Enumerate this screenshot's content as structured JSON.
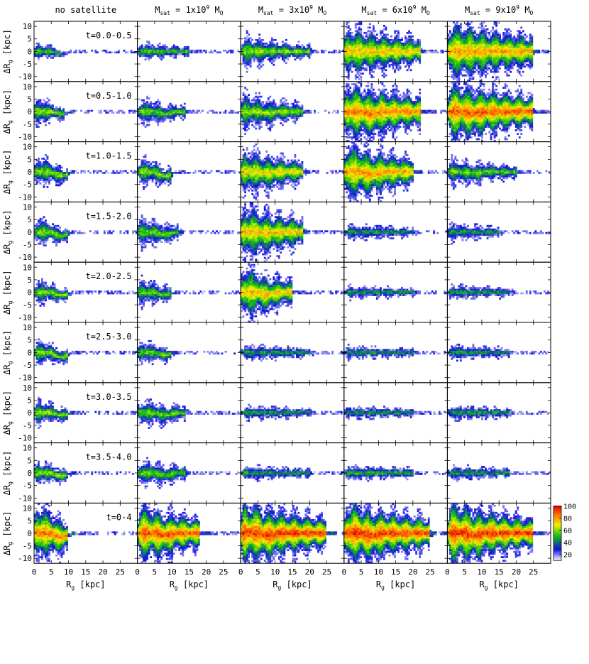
{
  "chart_data": {
    "type": "heatmap",
    "layout": {
      "rows": 9,
      "cols": 5
    },
    "columns": [
      {
        "title": "no satellite",
        "base": "",
        "sub": "",
        "sup": "",
        "tail": ""
      },
      {
        "title": "",
        "base": "M",
        "sub": "sat",
        "sup": "9",
        "tail": " = 1x10",
        "unit_base": " M",
        "unit_sub": "O"
      },
      {
        "title": "",
        "base": "M",
        "sub": "sat",
        "sup": "9",
        "tail": " = 3x10",
        "unit_base": " M",
        "unit_sub": "O"
      },
      {
        "title": "",
        "base": "M",
        "sub": "sat",
        "sup": "9",
        "tail": " = 6x10",
        "unit_base": " M",
        "unit_sub": "O"
      },
      {
        "title": "",
        "base": "M",
        "sub": "sat",
        "sup": "9",
        "tail": " = 9x10",
        "unit_base": " M",
        "unit_sub": "O"
      }
    ],
    "row_labels": [
      "t=0.0-0.5",
      "t=0.5-1.0",
      "t=1.0-1.5",
      "t=1.5-2.0",
      "t=2.0-2.5",
      "t=2.5-3.0",
      "t=3.0-3.5",
      "t=3.5-4.0",
      "t=0-4"
    ],
    "xlabel": {
      "base": "R",
      "sub": "g",
      "rest": " [kpc]"
    },
    "ylabel": {
      "pre": "ΔR",
      "sub": "g",
      "rest": " [kpc]"
    },
    "x_ticks": [
      0,
      5,
      10,
      15,
      20,
      25
    ],
    "y_ticks": [
      10,
      5,
      0,
      -5,
      -10
    ],
    "xlim": [
      0,
      30
    ],
    "ylim": [
      -12,
      12
    ],
    "colorbar": {
      "ticks": [
        100,
        80,
        60,
        40,
        20
      ],
      "range": [
        10,
        100
      ],
      "colors": [
        "#ffffff",
        "#1010e0",
        "#10c010",
        "#f0f000",
        "#ff8000",
        "#e00000"
      ]
    },
    "panels": [
      [
        {
          "extent": 8,
          "amp": 2.5,
          "decay": 0.28,
          "density": 0.55,
          "dip": 0.3
        },
        {
          "extent": 15,
          "amp": 2.5,
          "decay": 0.12,
          "density": 0.55,
          "dip": 0
        },
        {
          "extent": 20,
          "amp": 5,
          "decay": 0.1,
          "density": 0.6,
          "dip": 0
        },
        {
          "extent": 22,
          "amp": 9,
          "decay": 0.06,
          "density": 0.75,
          "dip": 0
        },
        {
          "extent": 25,
          "amp": 11,
          "decay": 0.05,
          "density": 0.8,
          "dip": 0
        }
      ],
      [
        {
          "extent": 9,
          "amp": 5,
          "decay": 0.3,
          "density": 0.6,
          "dip": 0.3
        },
        {
          "extent": 14,
          "amp": 4,
          "decay": 0.12,
          "density": 0.55,
          "dip": 0.3
        },
        {
          "extent": 18,
          "amp": 6,
          "decay": 0.1,
          "density": 0.6,
          "dip": 0.2
        },
        {
          "extent": 22,
          "amp": 11,
          "decay": 0.06,
          "density": 0.85,
          "dip": 0.3
        },
        {
          "extent": 25,
          "amp": 11,
          "decay": 0.05,
          "density": 0.9,
          "dip": 0.2
        }
      ],
      [
        {
          "extent": 10,
          "amp": 5,
          "decay": 0.2,
          "density": 0.6,
          "dip": 0.5
        },
        {
          "extent": 10,
          "amp": 4.5,
          "decay": 0.15,
          "density": 0.6,
          "dip": 0.6
        },
        {
          "extent": 18,
          "amp": 8,
          "decay": 0.08,
          "density": 0.7,
          "dip": 0.2
        },
        {
          "extent": 20,
          "amp": 11,
          "decay": 0.08,
          "density": 0.8,
          "dip": 0.3
        },
        {
          "extent": 20,
          "amp": 4,
          "decay": 0.07,
          "density": 0.55,
          "dip": 0.2
        }
      ],
      [
        {
          "extent": 10,
          "amp": 4.5,
          "decay": 0.2,
          "density": 0.6,
          "dip": 0.5
        },
        {
          "extent": 12,
          "amp": 4.5,
          "decay": 0.12,
          "density": 0.55,
          "dip": 0.3
        },
        {
          "extent": 18,
          "amp": 10,
          "decay": 0.08,
          "density": 0.75,
          "dip": 0.2
        },
        {
          "extent": 20,
          "amp": 2,
          "decay": 0.06,
          "density": 0.45,
          "dip": 0
        },
        {
          "extent": 15,
          "amp": 2.5,
          "decay": 0.1,
          "density": 0.45,
          "dip": 0
        }
      ],
      [
        {
          "extent": 10,
          "amp": 4,
          "decay": 0.2,
          "density": 0.6,
          "dip": 0.4
        },
        {
          "extent": 10,
          "amp": 4,
          "decay": 0.15,
          "density": 0.55,
          "dip": 0.3
        },
        {
          "extent": 15,
          "amp": 10,
          "decay": 0.12,
          "density": 0.75,
          "dip": 0.3
        },
        {
          "extent": 20,
          "amp": 1.5,
          "decay": 0.05,
          "density": 0.45,
          "dip": 0
        },
        {
          "extent": 18,
          "amp": 2,
          "decay": 0.08,
          "density": 0.45,
          "dip": 0
        }
      ],
      [
        {
          "extent": 10,
          "amp": 4,
          "decay": 0.2,
          "density": 0.6,
          "dip": 0.6
        },
        {
          "extent": 10,
          "amp": 3.5,
          "decay": 0.15,
          "density": 0.55,
          "dip": 0.3
        },
        {
          "extent": 20,
          "amp": 2,
          "decay": 0.06,
          "density": 0.45,
          "dip": 0
        },
        {
          "extent": 20,
          "amp": 1.5,
          "decay": 0.05,
          "density": 0.45,
          "dip": 0
        },
        {
          "extent": 18,
          "amp": 2,
          "decay": 0.08,
          "density": 0.45,
          "dip": 0
        }
      ],
      [
        {
          "extent": 10,
          "amp": 4,
          "decay": 0.2,
          "density": 0.6,
          "dip": 0.3
        },
        {
          "extent": 14,
          "amp": 4,
          "decay": 0.1,
          "density": 0.55,
          "dip": 0.3
        },
        {
          "extent": 20,
          "amp": 1.8,
          "decay": 0.06,
          "density": 0.45,
          "dip": 0
        },
        {
          "extent": 20,
          "amp": 1.5,
          "decay": 0.05,
          "density": 0.45,
          "dip": 0
        },
        {
          "extent": 18,
          "amp": 2,
          "decay": 0.08,
          "density": 0.45,
          "dip": 0
        }
      ],
      [
        {
          "extent": 10,
          "amp": 4,
          "decay": 0.2,
          "density": 0.6,
          "dip": 0.4
        },
        {
          "extent": 14,
          "amp": 4,
          "decay": 0.1,
          "density": 0.55,
          "dip": 0.3
        },
        {
          "extent": 20,
          "amp": 1.8,
          "decay": 0.06,
          "density": 0.45,
          "dip": 0
        },
        {
          "extent": 20,
          "amp": 2,
          "decay": 0.06,
          "density": 0.5,
          "dip": 0
        },
        {
          "extent": 18,
          "amp": 2,
          "decay": 0.08,
          "density": 0.45,
          "dip": 0
        }
      ],
      [
        {
          "extent": 10,
          "amp": 11,
          "decay": 0.15,
          "density": 0.85,
          "dip": 0.5
        },
        {
          "extent": 18,
          "amp": 11,
          "decay": 0.08,
          "density": 0.9,
          "dip": 0.3
        },
        {
          "extent": 25,
          "amp": 12,
          "decay": 0.06,
          "density": 0.95,
          "dip": 0.3
        },
        {
          "extent": 25,
          "amp": 12,
          "decay": 0.06,
          "density": 0.95,
          "dip": 0.3
        },
        {
          "extent": 25,
          "amp": 12,
          "decay": 0.06,
          "density": 0.95,
          "dip": 0.3
        }
      ]
    ]
  }
}
